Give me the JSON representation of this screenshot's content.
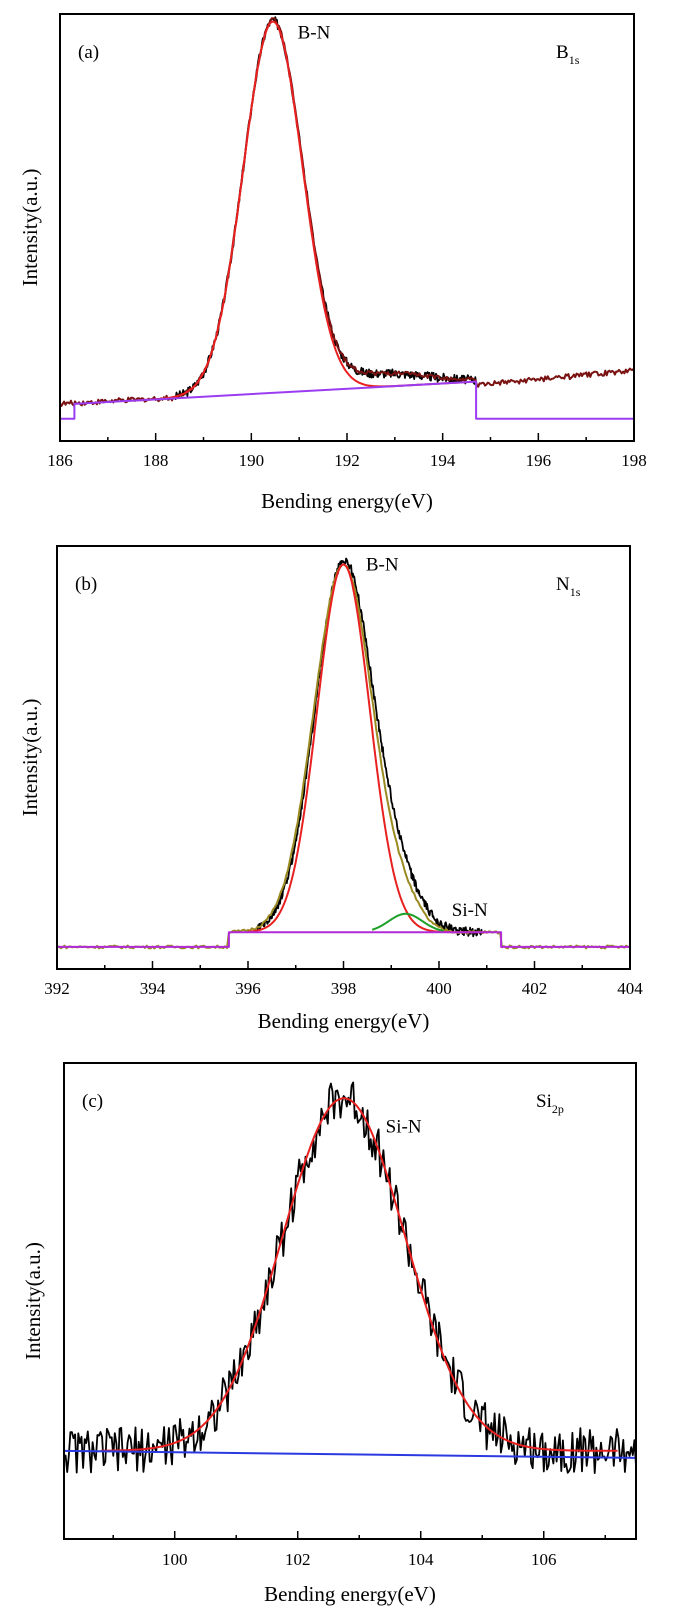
{
  "chart_data": [
    {
      "type": "line",
      "panel_label": "(a)",
      "element_main": "B",
      "element_sub": "1s",
      "peak_labels": [
        {
          "text": "B-N",
          "x": 190.8,
          "y": 1.0
        }
      ],
      "xlabel": "Bending energy(eV)",
      "ylabel": "Intensity(a.u.)",
      "xlim": [
        186,
        198
      ],
      "ylim": [
        -0.1,
        1.05
      ],
      "xticks": [
        186,
        188,
        190,
        192,
        194,
        196,
        198
      ],
      "ytick_labels": false,
      "background": {
        "x1": 186.3,
        "x2": 194.7,
        "offset": -0.04,
        "y1": 0.0,
        "y2": 0.06
      },
      "series": [
        {
          "role": "raw",
          "color": "#000000",
          "center": 190.45,
          "amp": 1.0,
          "sigma": 0.62,
          "shoulder": {
            "center": 192.7,
            "amp": 0.035,
            "sigma": 1.0
          },
          "noise": 0.012,
          "range": [
            188.4,
            194.7
          ]
        },
        {
          "role": "raw-extended",
          "color": "#7a1212",
          "range": [
            186,
            198
          ],
          "baseline": [
            0.0,
            0.06,
            0.05,
            0.09
          ]
        },
        {
          "role": "fit",
          "color": "#e82020",
          "center": 190.45,
          "amp": 1.0,
          "sigma": 0.62,
          "range": [
            187.5,
            194.5
          ]
        },
        {
          "role": "background",
          "color": "#9a3cf0"
        }
      ]
    },
    {
      "type": "line",
      "panel_label": "(b)",
      "element_main": "N",
      "element_sub": "1s",
      "peak_labels": [
        {
          "text": "B-N",
          "x": 398.3,
          "y": 1.0
        },
        {
          "text": "Si-N",
          "x": 400.1,
          "y": 0.06
        }
      ],
      "xlabel": "Bending energy(eV)",
      "ylabel": "Intensity(a.u.)",
      "xlim": [
        392,
        404
      ],
      "ylim": [
        -0.1,
        1.05
      ],
      "xticks": [
        392,
        394,
        396,
        398,
        400,
        402,
        404
      ],
      "ytick_labels": false,
      "background": {
        "x1": 395.6,
        "x2": 401.3,
        "offset": -0.04,
        "y1": 0.0,
        "y2": 0.0
      },
      "series": [
        {
          "role": "raw",
          "color": "#000000",
          "center": 398.0,
          "amp": 1.0,
          "sigma": 0.6,
          "shoulder": {
            "center": 399.1,
            "amp": 0.12,
            "sigma": 0.5
          },
          "noise": 0.012,
          "range": [
            396.2,
            400.9
          ]
        },
        {
          "role": "envelope",
          "color": "#9a8a22",
          "center": 398.0,
          "amp": 1.0,
          "sigma": 0.62,
          "shoulder": {
            "center": 399.3,
            "amp": 0.05,
            "sigma": 0.35
          },
          "noise": 0.004,
          "range": [
            392,
            404
          ]
        },
        {
          "role": "fit",
          "color": "#e82020",
          "center": 398.0,
          "amp": 1.0,
          "sigma": 0.55,
          "range": [
            396.0,
            401.0
          ]
        },
        {
          "role": "component",
          "color": "#1fa02a",
          "center": 399.3,
          "amp": 0.05,
          "sigma": 0.35,
          "range": [
            398.6,
            400.1
          ]
        },
        {
          "role": "background",
          "color": "#b02ad8"
        }
      ]
    },
    {
      "type": "line",
      "panel_label": "(c)",
      "element_main": "Si",
      "element_sub": "2p",
      "peak_labels": [
        {
          "text": "Si-N",
          "x": 103.3,
          "y": 0.92
        }
      ],
      "xlabel": "Bending energy(eV)",
      "ylabel": "Intensity(a.u.)",
      "xlim": [
        98.2,
        107.5
      ],
      "ylim": [
        -0.25,
        1.1
      ],
      "xticks": [
        100,
        102,
        104,
        106
      ],
      "ytick_labels": false,
      "background": null,
      "series": [
        {
          "role": "raw",
          "color": "#000000",
          "center": 102.75,
          "amp": 1.0,
          "sigma": 1.0,
          "noise": 0.065,
          "range": [
            98.2,
            107.5
          ]
        },
        {
          "role": "fit",
          "color": "#e82020",
          "center": 102.75,
          "amp": 1.0,
          "sigma": 1.0,
          "range": [
            98.8,
            107.2
          ]
        },
        {
          "role": "baseline",
          "color": "#2a3ae0",
          "y1": 0.0,
          "y2": -0.02,
          "range": [
            98.2,
            107.5
          ]
        }
      ]
    }
  ]
}
